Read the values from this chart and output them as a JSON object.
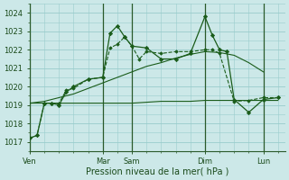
{
  "bg_color": "#cce8e8",
  "grid_color": "#99cccc",
  "line_color": "#1a5c1a",
  "xlabel": "Pression niveau de la mer( hPa )",
  "ylim": [
    1016.5,
    1024.5
  ],
  "yticks": [
    1017,
    1018,
    1019,
    1020,
    1021,
    1022,
    1023,
    1024
  ],
  "day_labels": [
    "Ven",
    "Mar",
    "Sam",
    "Dim",
    "Lun"
  ],
  "day_positions": [
    0,
    60,
    84,
    144,
    192
  ],
  "vline_positions": [
    0,
    60,
    84,
    144,
    192
  ],
  "xlim": [
    0,
    210
  ],
  "line_flat_x": [
    0,
    12,
    24,
    36,
    48,
    60,
    72,
    84,
    96,
    108,
    120,
    132,
    144,
    156,
    168,
    180,
    192,
    204
  ],
  "line_flat_y": [
    1019.1,
    1019.1,
    1019.1,
    1019.1,
    1019.1,
    1019.1,
    1019.1,
    1019.1,
    1019.15,
    1019.2,
    1019.2,
    1019.2,
    1019.25,
    1019.25,
    1019.25,
    1019.25,
    1019.25,
    1019.25
  ],
  "line_rise_x": [
    0,
    12,
    24,
    36,
    48,
    60,
    72,
    84,
    96,
    108,
    120,
    132,
    144,
    156,
    168,
    180,
    192
  ],
  "line_rise_y": [
    1019.1,
    1019.2,
    1019.4,
    1019.6,
    1019.9,
    1020.2,
    1020.5,
    1020.8,
    1021.1,
    1021.3,
    1021.55,
    1021.75,
    1021.9,
    1021.85,
    1021.7,
    1021.3,
    1020.8
  ],
  "line_dotted_x": [
    0,
    6,
    12,
    18,
    24,
    30,
    36,
    48,
    60,
    66,
    72,
    78,
    84,
    90,
    96,
    108,
    120,
    132,
    144,
    150,
    156,
    168,
    180,
    192,
    204
  ],
  "line_dotted_y": [
    1017.2,
    1017.35,
    1019.1,
    1019.1,
    1019.1,
    1019.8,
    1019.9,
    1020.4,
    1020.5,
    1022.1,
    1022.3,
    1022.7,
    1022.2,
    1021.5,
    1021.9,
    1021.8,
    1021.9,
    1021.9,
    1022.0,
    1022.0,
    1021.8,
    1019.2,
    1019.25,
    1019.4,
    1019.4
  ],
  "line_main_x": [
    0,
    6,
    12,
    18,
    24,
    30,
    36,
    48,
    60,
    66,
    72,
    78,
    84,
    96,
    108,
    120,
    132,
    144,
    150,
    156,
    162,
    168,
    180,
    192,
    204
  ],
  "line_main_y": [
    1017.2,
    1017.35,
    1019.1,
    1019.1,
    1019.0,
    1019.7,
    1020.0,
    1020.4,
    1020.5,
    1022.9,
    1023.3,
    1022.7,
    1022.2,
    1022.1,
    1021.5,
    1021.5,
    1021.8,
    1023.8,
    1022.8,
    1022.0,
    1021.9,
    1019.3,
    1018.6,
    1019.3,
    1019.4
  ],
  "minor_x_spacing": 12
}
